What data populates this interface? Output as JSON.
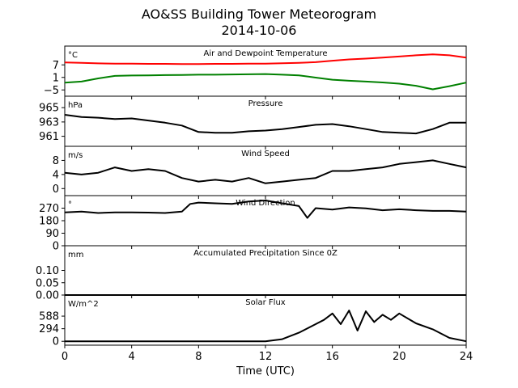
{
  "title": "AO&SS Building Tower Meteorogram",
  "subtitle": "2014-10-06",
  "xlabel": "Time (UTC)",
  "chart_data": {
    "type": "line",
    "x_ticks": [
      0,
      4,
      8,
      12,
      16,
      20,
      24
    ],
    "xlim": [
      0,
      24
    ],
    "panels": [
      {
        "id": "temperature",
        "title": "Air and Dewpoint Temperature",
        "unit": "°C",
        "ylim": [
          -8,
          16
        ],
        "yticks": [
          -5,
          1,
          7
        ],
        "ytick_labels": [
          "−5",
          "1",
          "7"
        ],
        "series": [
          {
            "name": "Air Temperature",
            "color": "#ff0000",
            "x": [
              0,
              1,
              2,
              3,
              4,
              5,
              6,
              7,
              8,
              9,
              10,
              11,
              12,
              13,
              14,
              15,
              16,
              17,
              18,
              19,
              20,
              21,
              22,
              23,
              24
            ],
            "y": [
              8.2,
              8.0,
              7.7,
              7.6,
              7.6,
              7.5,
              7.5,
              7.4,
              7.4,
              7.5,
              7.5,
              7.6,
              7.6,
              7.8,
              8.0,
              8.3,
              9.0,
              9.6,
              10.0,
              10.5,
              11.0,
              11.6,
              12.0,
              11.6,
              10.5
            ]
          },
          {
            "name": "Dewpoint",
            "color": "#008000",
            "x": [
              0,
              1,
              2,
              3,
              4,
              5,
              6,
              7,
              8,
              9,
              10,
              11,
              12,
              13,
              14,
              15,
              16,
              17,
              18,
              19,
              20,
              21,
              22,
              23,
              24
            ],
            "y": [
              -1.5,
              -1.0,
              0.5,
              1.7,
              1.9,
              2.0,
              2.1,
              2.2,
              2.3,
              2.3,
              2.4,
              2.5,
              2.6,
              2.3,
              2.0,
              0.9,
              -0.1,
              -0.6,
              -1.0,
              -1.4,
              -2.0,
              -3.0,
              -4.7,
              -3.2,
              -1.5
            ]
          }
        ]
      },
      {
        "id": "pressure",
        "title": "Pressure",
        "unit": "hPa",
        "ylim": [
          959.6,
          966.6
        ],
        "yticks": [
          961,
          963,
          965
        ],
        "ytick_labels": [
          "961",
          "963",
          "965"
        ],
        "series": [
          {
            "name": "Pressure",
            "color": "#000000",
            "x": [
              0,
              1,
              2,
              3,
              4,
              5,
              6,
              7,
              8,
              9,
              10,
              11,
              12,
              13,
              14,
              15,
              16,
              17,
              18,
              19,
              20,
              21,
              22,
              23,
              24
            ],
            "y": [
              964.0,
              963.7,
              963.6,
              963.4,
              963.5,
              963.2,
              962.9,
              962.5,
              961.6,
              961.5,
              961.5,
              961.7,
              961.8,
              962.0,
              962.3,
              962.6,
              962.7,
              962.4,
              962.0,
              961.6,
              961.5,
              961.4,
              962.0,
              962.9,
              962.9
            ]
          }
        ]
      },
      {
        "id": "wind_speed",
        "title": "Wind Speed",
        "unit": "m/s",
        "ylim": [
          -2,
          12
        ],
        "yticks": [
          0,
          4,
          8
        ],
        "ytick_labels": [
          "0",
          "4",
          "8"
        ],
        "series": [
          {
            "name": "Wind Speed",
            "color": "#000000",
            "x": [
              0,
              1,
              2,
              3,
              4,
              5,
              6,
              7,
              8,
              9,
              10,
              11,
              12,
              13,
              14,
              15,
              16,
              17,
              18,
              19,
              20,
              21,
              22,
              23,
              24
            ],
            "y": [
              4.5,
              4.0,
              4.5,
              6.0,
              5.0,
              5.5,
              5.0,
              3.0,
              2.0,
              2.5,
              2.0,
              3.0,
              1.5,
              2.0,
              2.5,
              3.0,
              5.0,
              5.0,
              5.5,
              6.0,
              7.0,
              7.5,
              8.0,
              7.0,
              6.0
            ]
          }
        ]
      },
      {
        "id": "wind_direction",
        "title": "Wind Direction",
        "unit": "°",
        "ylim": [
          0,
          360
        ],
        "yticks": [
          0,
          90,
          180,
          270
        ],
        "ytick_labels": [
          "0",
          "90",
          "180",
          "270"
        ],
        "series": [
          {
            "name": "Wind Direction",
            "color": "#000000",
            "x": [
              0,
              1,
              2,
              3,
              4,
              5,
              6,
              7,
              7.5,
              8,
              9,
              10,
              11,
              12,
              13,
              14,
              14.5,
              15,
              16,
              17,
              18,
              19,
              20,
              21,
              22,
              23,
              24
            ],
            "y": [
              240,
              245,
              235,
              240,
              240,
              238,
              235,
              245,
              300,
              310,
              305,
              300,
              318,
              325,
              305,
              285,
              200,
              270,
              260,
              275,
              268,
              255,
              262,
              255,
              250,
              250,
              245
            ]
          }
        ]
      },
      {
        "id": "precipitation",
        "title": "Accumulated Precipitation Since 0Z",
        "unit": "mm",
        "ylim": [
          0,
          0.2
        ],
        "yticks": [
          0,
          0.05,
          0.1
        ],
        "ytick_labels": [
          "0.00",
          "0.05",
          "0.10"
        ],
        "series": [
          {
            "name": "Accumulated Precipitation",
            "color": "#000000",
            "x": [
              0,
              24
            ],
            "y": [
              0,
              0
            ]
          }
        ]
      },
      {
        "id": "solar",
        "title": "Solar Flux",
        "unit": "W/m^2",
        "ylim": [
          -90,
          1080
        ],
        "yticks": [
          0,
          294,
          588
        ],
        "ytick_labels": [
          "0",
          "294",
          "588"
        ],
        "series": [
          {
            "name": "Solar Flux",
            "color": "#000000",
            "x": [
              0,
              12,
              13,
              14,
              15,
              15.5,
              16,
              16.5,
              17,
              17.5,
              18,
              18.5,
              19,
              19.5,
              20,
              21,
              22,
              23,
              24
            ],
            "y": [
              0,
              0,
              50,
              200,
              400,
              500,
              650,
              400,
              720,
              250,
              700,
              450,
              620,
              500,
              650,
              420,
              280,
              80,
              0
            ]
          }
        ]
      }
    ]
  }
}
